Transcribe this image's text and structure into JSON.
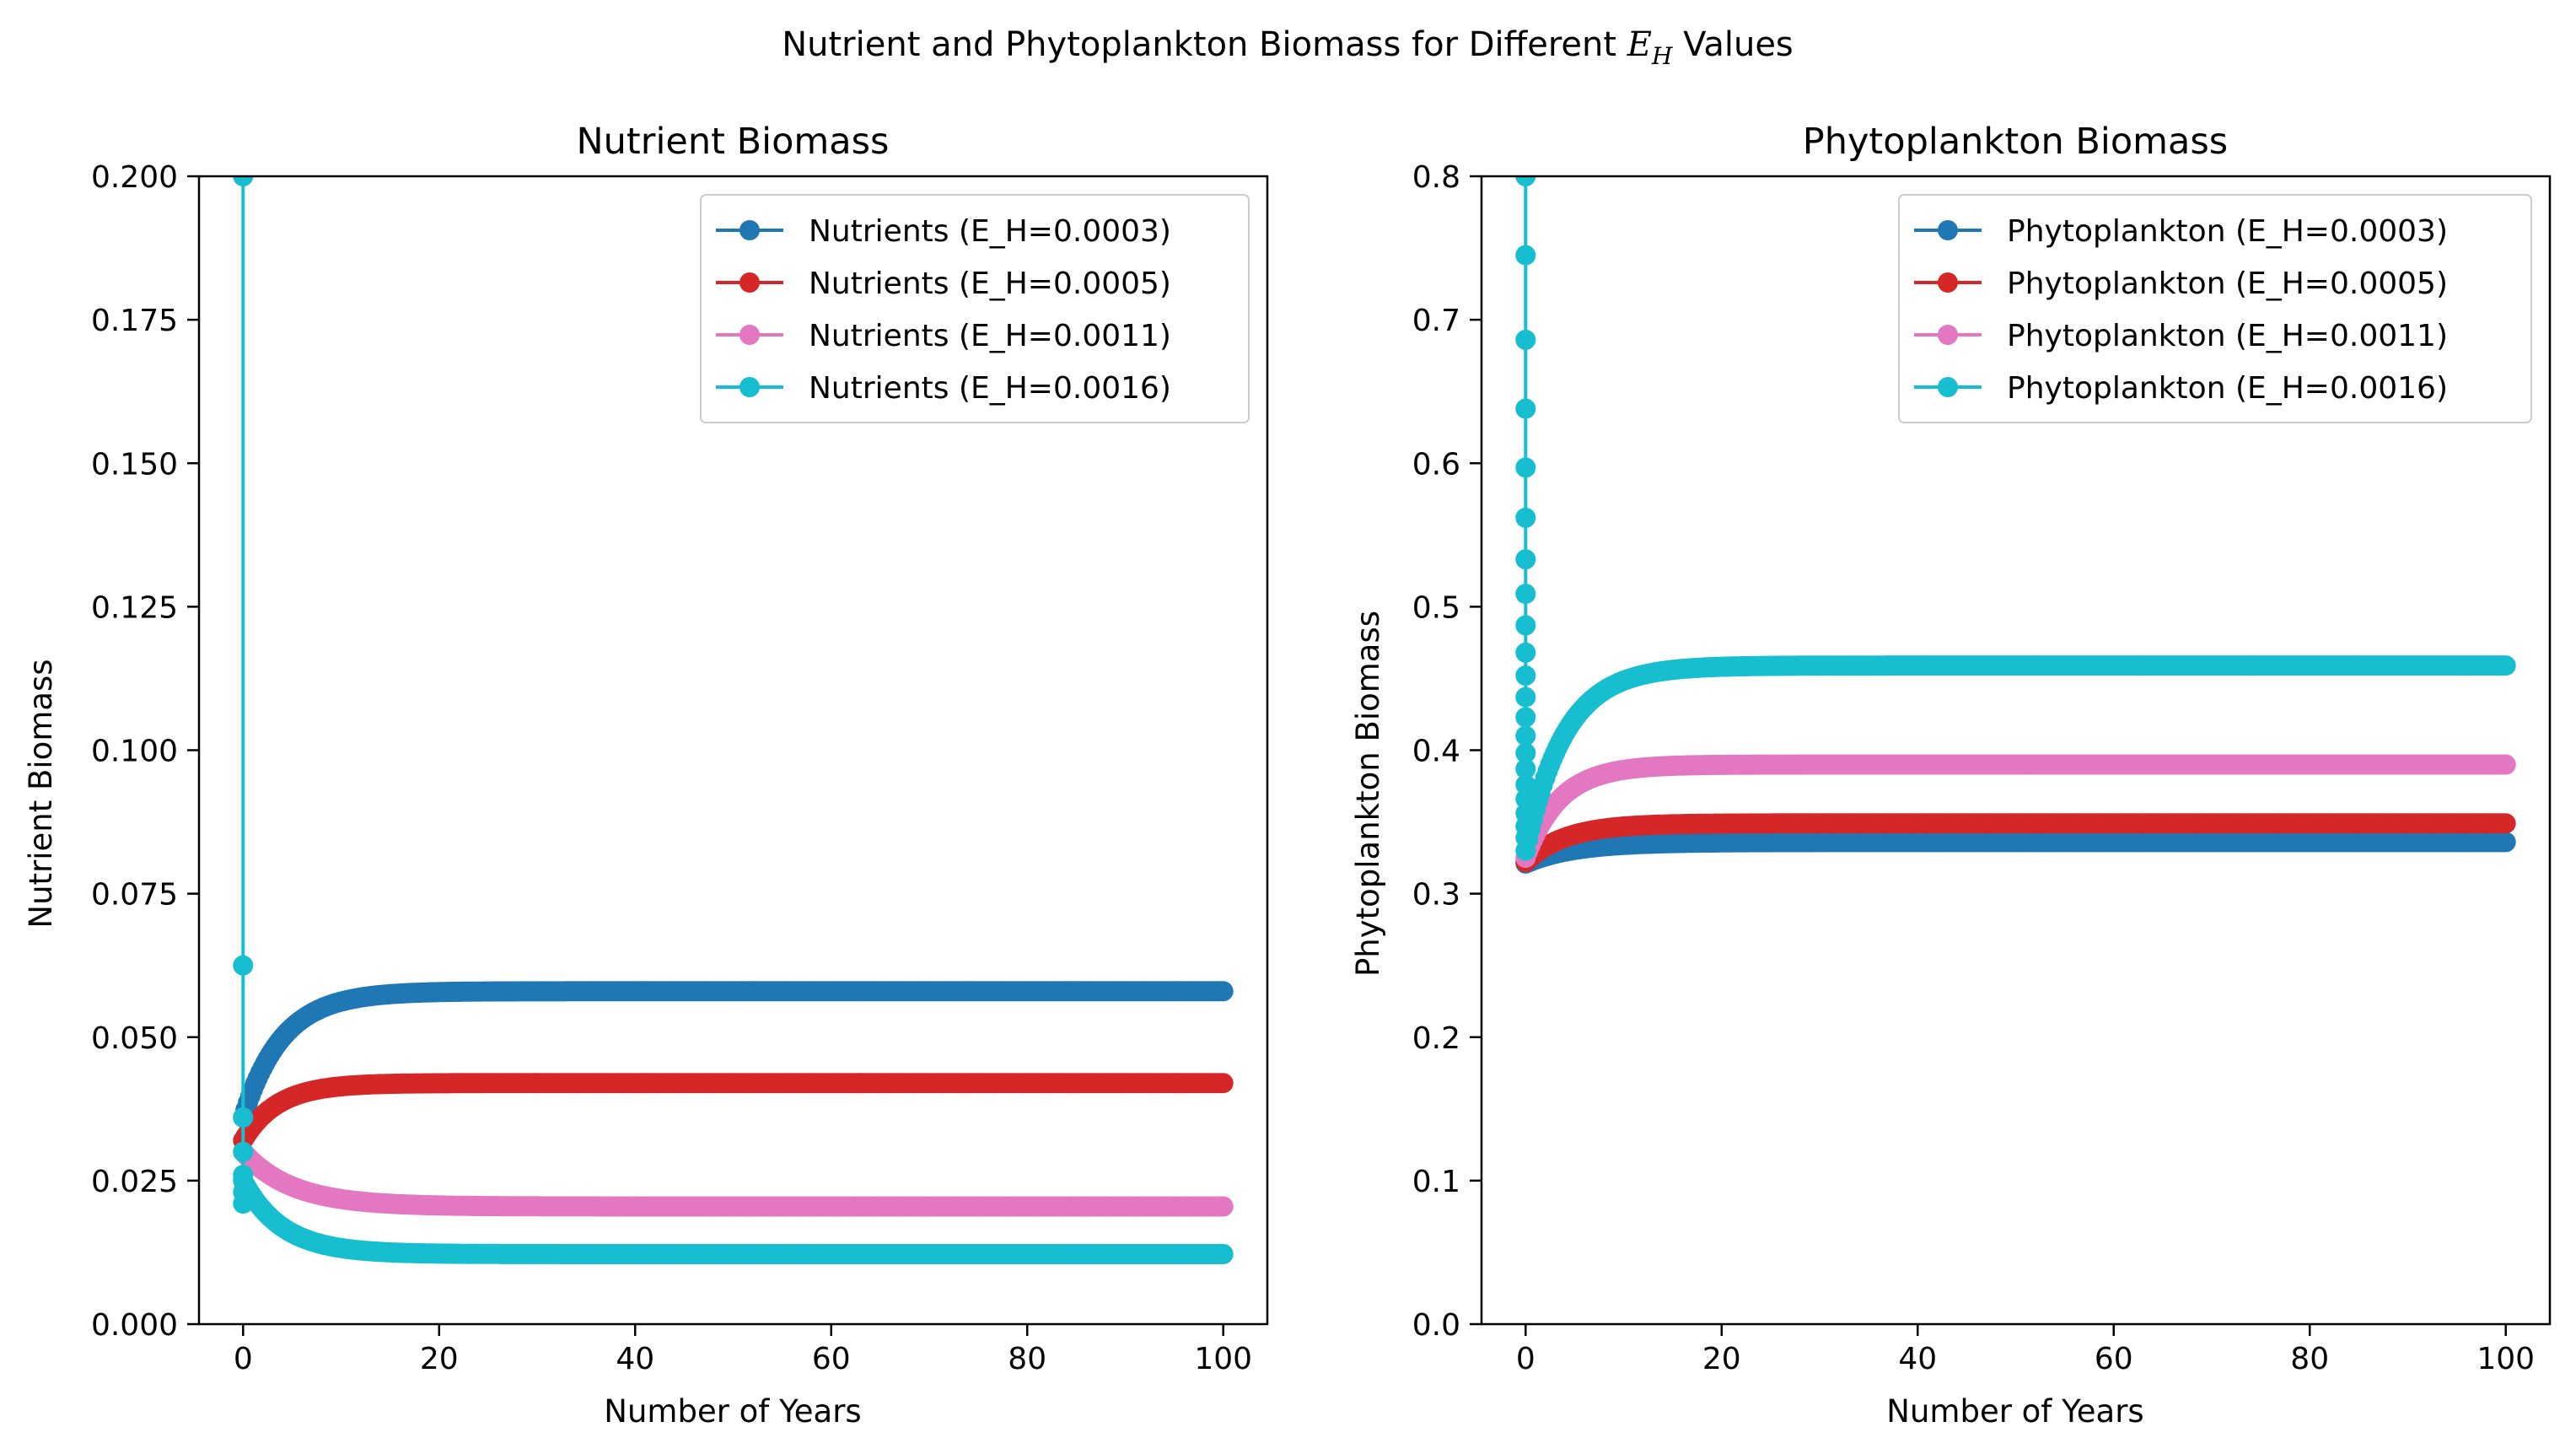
{
  "figure": {
    "suptitle_prefix": "Nutrient and Phytoplankton Biomass for Different ",
    "suptitle_symbol": "E",
    "suptitle_subscript": "H",
    "suptitle_suffix": " Values"
  },
  "chart_data": [
    {
      "type": "line",
      "title": "Nutrient Biomass",
      "xlabel": "Number of Years",
      "ylabel": "Nutrient Biomass",
      "xlim": [
        -4.5,
        104.5
      ],
      "ylim": [
        0,
        0.2
      ],
      "xticks": [
        0,
        20,
        40,
        60,
        80,
        100
      ],
      "yticks": [
        0.0,
        0.025,
        0.05,
        0.075,
        0.1,
        0.125,
        0.15,
        0.175,
        0.2
      ],
      "ytick_labels": [
        "0.000",
        "0.025",
        "0.050",
        "0.075",
        "0.100",
        "0.125",
        "0.150",
        "0.175",
        "0.200"
      ],
      "legend": "top-right",
      "series": [
        {
          "name": "Nutrients (E_H=0.0003)",
          "color": "#1f77b4",
          "start": 0.036,
          "end": 0.058,
          "tau": 4.0,
          "spike": null
        },
        {
          "name": "Nutrients (E_H=0.0005)",
          "color": "#d62728",
          "start": 0.032,
          "end": 0.042,
          "tau": 3.5,
          "spike": null
        },
        {
          "name": "Nutrients (E_H=0.0011)",
          "color": "#e377c2",
          "start": 0.03,
          "end": 0.0205,
          "tau": 5.0,
          "spike": null
        },
        {
          "name": "Nutrients (E_H=0.0016)",
          "color": "#17becf",
          "start": 0.025,
          "end": 0.0122,
          "tau": 4.0,
          "spike": [
            0.2,
            0.0625,
            0.036,
            0.03,
            0.026,
            0.023,
            0.021
          ]
        }
      ]
    },
    {
      "type": "line",
      "title": "Phytoplankton Biomass",
      "xlabel": "Number of Years",
      "ylabel": "Phytoplankton Biomass",
      "xlim": [
        -4.5,
        104.5
      ],
      "ylim": [
        0,
        0.8
      ],
      "xticks": [
        0,
        20,
        40,
        60,
        80,
        100
      ],
      "yticks": [
        0.0,
        0.1,
        0.2,
        0.3,
        0.4,
        0.5,
        0.6,
        0.7,
        0.8
      ],
      "ytick_labels": [
        "0.0",
        "0.1",
        "0.2",
        "0.3",
        "0.4",
        "0.5",
        "0.6",
        "0.7",
        "0.8"
      ],
      "legend": "top-right",
      "series": [
        {
          "name": "Phytoplankton (E_H=0.0003)",
          "color": "#1f77b4",
          "start": 0.321,
          "end": 0.336,
          "tau": 5.0,
          "spike": null
        },
        {
          "name": "Phytoplankton (E_H=0.0005)",
          "color": "#d62728",
          "start": 0.322,
          "end": 0.349,
          "tau": 4.0,
          "spike": null
        },
        {
          "name": "Phytoplankton (E_H=0.0011)",
          "color": "#e377c2",
          "start": 0.325,
          "end": 0.39,
          "tau": 3.5,
          "spike": null
        },
        {
          "name": "Phytoplankton (E_H=0.0016)",
          "color": "#17becf",
          "start": 0.33,
          "end": 0.459,
          "tau": 4.0,
          "spike": [
            0.8,
            0.745,
            0.686,
            0.638,
            0.597,
            0.562,
            0.533,
            0.509,
            0.487,
            0.468,
            0.452,
            0.437,
            0.423,
            0.41,
            0.398,
            0.387,
            0.376,
            0.366,
            0.356,
            0.347,
            0.339
          ]
        }
      ]
    }
  ]
}
